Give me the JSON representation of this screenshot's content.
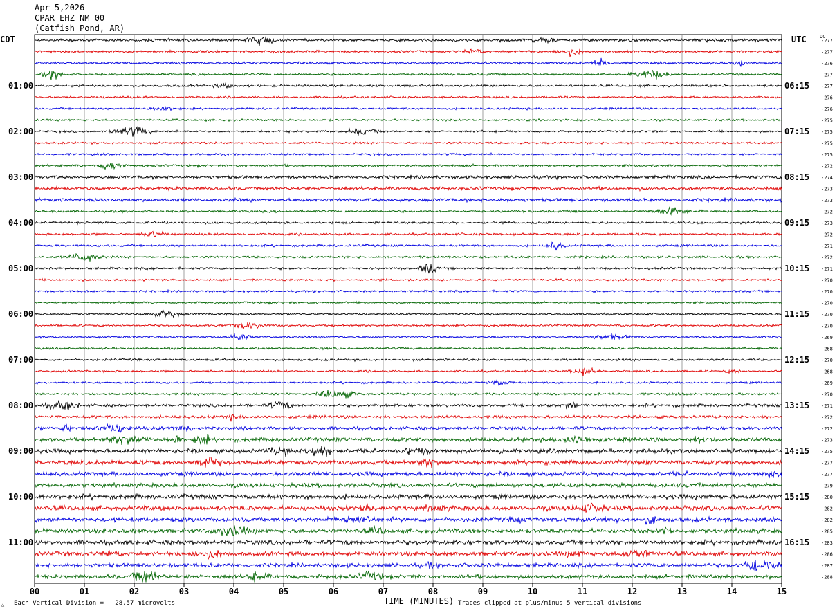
{
  "header": {
    "date": "Apr 5,2026",
    "station": "CPAR EHZ NM 00",
    "location": "(Catfish Pond, AR)"
  },
  "left_label": "CDT",
  "right_label": "UTC",
  "dc_label": "DC",
  "footer": {
    "scale_note": "Each Vertical Division =   28.57 microvolts",
    "clip_note": "Traces clipped at plus/minus 5 vertical divisions"
  },
  "chart_data": {
    "type": "line",
    "title": "",
    "xlabel": "TIME (MINUTES)",
    "xlim": [
      0,
      15
    ],
    "x_ticks": [
      "00",
      "01",
      "02",
      "03",
      "04",
      "05",
      "06",
      "07",
      "08",
      "09",
      "10",
      "11",
      "12",
      "13",
      "14",
      "15"
    ],
    "grid": true,
    "trace_colors": [
      "#000000",
      "#e00000",
      "#0000e0",
      "#006400"
    ],
    "left_time_labels": [
      "01:00",
      "02:00",
      "03:00",
      "04:00",
      "05:00",
      "06:00",
      "07:00",
      "08:00",
      "09:00",
      "10:00",
      "11:00"
    ],
    "right_time_labels": [
      "06:15",
      "07:15",
      "08:15",
      "09:15",
      "10:15",
      "11:15",
      "12:15",
      "13:15",
      "14:15",
      "15:15",
      "16:15"
    ],
    "dc_offsets": [
      -277,
      -277,
      -276,
      -277,
      -277,
      -276,
      -276,
      -275,
      -275,
      -275,
      -275,
      -272,
      -274,
      -273,
      -273,
      -272,
      -273,
      -272,
      -271,
      -272,
      -271,
      -270,
      -270,
      -270,
      -270,
      -270,
      -269,
      -268,
      -270,
      -268,
      -269,
      -270,
      -271,
      -272,
      -272,
      -273,
      -275,
      -277,
      -277,
      -279,
      -280,
      -282,
      -282,
      -285,
      -283,
      -286,
      -287,
      -288
    ],
    "trace_activity": [
      1.2,
      1.0,
      1.0,
      0.9,
      1.0,
      0.9,
      0.9,
      0.9,
      0.9,
      0.9,
      0.9,
      1.0,
      1.4,
      1.4,
      1.5,
      1.0,
      1.0,
      1.0,
      1.0,
      1.0,
      1.0,
      0.9,
      0.9,
      0.9,
      0.9,
      0.9,
      0.9,
      0.9,
      1.0,
      0.9,
      0.9,
      1.0,
      1.3,
      1.3,
      1.5,
      1.9,
      1.9,
      1.9,
      1.9,
      1.9,
      2.1,
      2.1,
      2.1,
      2.0,
      2.0,
      1.9,
      1.8,
      1.8
    ]
  }
}
